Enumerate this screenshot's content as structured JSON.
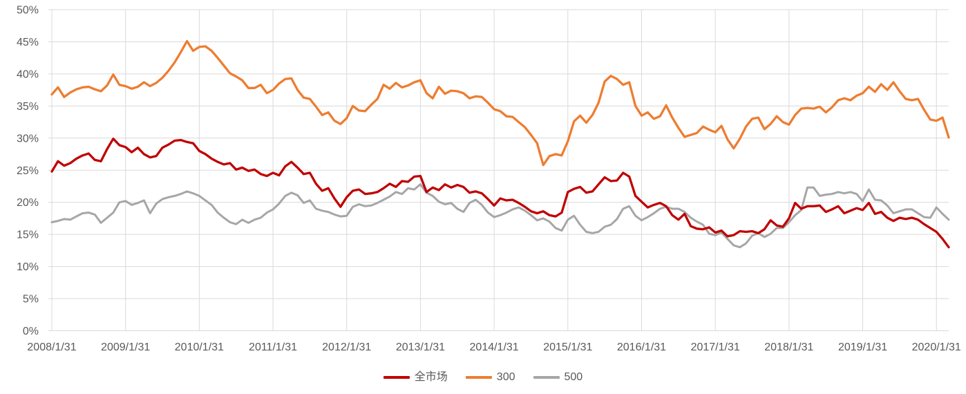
{
  "chart_data": {
    "type": "line",
    "title": "",
    "x_start": "2008/1",
    "x_end": "2020/3",
    "x_interval": "monthly",
    "x_tick_labels": [
      "2008/1/31",
      "2009/1/31",
      "2010/1/31",
      "2011/1/31",
      "2012/1/31",
      "2013/1/31",
      "2014/1/31",
      "2015/1/31",
      "2016/1/31",
      "2017/1/31",
      "2018/1/31",
      "2019/1/31",
      "2020/1/31"
    ],
    "y_tick_labels": [
      "0%",
      "5%",
      "10%",
      "15%",
      "20%",
      "25%",
      "30%",
      "35%",
      "40%",
      "45%",
      "50%"
    ],
    "ylim": [
      0,
      50
    ],
    "y_tick_step": 5,
    "y_unit": "%",
    "grid": "both",
    "legend_position": "bottom",
    "series": [
      {
        "name": "全市场",
        "color": "#C00000",
        "values": [
          24.8,
          26.4,
          25.7,
          26.1,
          26.8,
          27.3,
          27.6,
          26.6,
          26.4,
          28.3,
          29.9,
          28.9,
          28.6,
          27.8,
          28.5,
          27.5,
          27.0,
          27.2,
          28.5,
          29.0,
          29.6,
          29.7,
          29.4,
          29.2,
          28.0,
          27.5,
          26.8,
          26.3,
          25.9,
          26.1,
          25.1,
          25.4,
          24.9,
          25.1,
          24.4,
          24.1,
          24.6,
          24.2,
          25.6,
          26.3,
          25.4,
          24.4,
          24.6,
          22.9,
          21.8,
          22.2,
          20.6,
          19.3,
          20.8,
          21.8,
          22.0,
          21.3,
          21.4,
          21.6,
          22.2,
          22.9,
          22.4,
          23.3,
          23.2,
          24.0,
          24.1,
          21.6,
          22.3,
          21.9,
          22.8,
          22.3,
          22.7,
          22.4,
          21.5,
          21.7,
          21.4,
          20.5,
          19.5,
          20.6,
          20.3,
          20.4,
          19.9,
          19.3,
          18.6,
          18.3,
          18.6,
          18.0,
          17.8,
          18.4,
          21.6,
          22.1,
          22.4,
          21.5,
          21.7,
          22.8,
          23.9,
          23.3,
          23.4,
          24.6,
          24.0,
          21.0,
          20.1,
          19.2,
          19.6,
          19.9,
          19.4,
          18.0,
          17.3,
          18.2,
          16.3,
          15.9,
          15.8,
          16.1,
          15.3,
          15.6,
          14.7,
          14.9,
          15.5,
          15.4,
          15.5,
          15.2,
          15.8,
          17.2,
          16.4,
          16.2,
          17.5,
          19.9,
          19.0,
          19.4,
          19.4,
          19.5,
          18.5,
          18.9,
          19.4,
          18.3,
          18.7,
          19.1,
          18.8,
          19.9,
          18.2,
          18.5,
          17.6,
          17.1,
          17.6,
          17.4,
          17.6,
          17.3,
          16.6,
          16.0,
          15.4,
          14.3,
          13.0
        ]
      },
      {
        "name": "300",
        "color": "#ED7D31",
        "values": [
          36.8,
          37.9,
          36.4,
          37.1,
          37.6,
          37.9,
          38.0,
          37.6,
          37.3,
          38.2,
          39.9,
          38.3,
          38.1,
          37.7,
          38.0,
          38.7,
          38.1,
          38.6,
          39.4,
          40.5,
          41.8,
          43.4,
          45.1,
          43.6,
          44.2,
          44.3,
          43.6,
          42.5,
          41.3,
          40.1,
          39.6,
          39.0,
          37.8,
          37.8,
          38.3,
          37.0,
          37.5,
          38.5,
          39.2,
          39.3,
          37.5,
          36.3,
          36.1,
          34.9,
          33.6,
          34.0,
          32.7,
          32.2,
          33.1,
          35.0,
          34.3,
          34.2,
          35.2,
          36.1,
          38.3,
          37.7,
          38.6,
          37.9,
          38.2,
          38.7,
          39.0,
          37.0,
          36.2,
          38.0,
          36.9,
          37.4,
          37.3,
          37.0,
          36.2,
          36.5,
          36.4,
          35.5,
          34.5,
          34.2,
          33.4,
          33.3,
          32.5,
          31.7,
          30.5,
          29.2,
          25.8,
          27.2,
          27.5,
          27.3,
          29.5,
          32.6,
          33.5,
          32.4,
          33.6,
          35.5,
          38.8,
          39.7,
          39.2,
          38.3,
          38.7,
          35.0,
          33.5,
          34.0,
          33.0,
          33.4,
          35.1,
          33.2,
          31.6,
          30.2,
          30.5,
          30.8,
          31.8,
          31.3,
          30.9,
          31.9,
          29.8,
          28.4,
          29.9,
          31.8,
          33.0,
          33.2,
          31.4,
          32.2,
          33.4,
          32.5,
          32.1,
          33.6,
          34.6,
          34.7,
          34.6,
          34.9,
          34.0,
          34.8,
          35.9,
          36.2,
          35.9,
          36.6,
          37.0,
          38.0,
          37.2,
          38.4,
          37.5,
          38.7,
          37.3,
          36.1,
          35.9,
          36.1,
          34.4,
          32.9,
          32.7,
          33.2,
          30.1
        ]
      },
      {
        "name": "500",
        "color": "#A6A6A6",
        "values": [
          16.9,
          17.1,
          17.4,
          17.3,
          17.8,
          18.3,
          18.4,
          18.1,
          16.8,
          17.6,
          18.4,
          20.0,
          20.2,
          19.6,
          19.9,
          20.3,
          18.3,
          19.8,
          20.5,
          20.8,
          21.0,
          21.3,
          21.7,
          21.4,
          21.0,
          20.3,
          19.6,
          18.4,
          17.6,
          16.9,
          16.6,
          17.3,
          16.8,
          17.3,
          17.6,
          18.4,
          18.9,
          19.8,
          21.0,
          21.5,
          21.1,
          19.9,
          20.3,
          19.0,
          18.7,
          18.5,
          18.1,
          17.8,
          17.9,
          19.3,
          19.7,
          19.4,
          19.5,
          19.9,
          20.4,
          20.9,
          21.6,
          21.3,
          22.2,
          22.0,
          22.8,
          21.5,
          21.0,
          20.1,
          19.7,
          19.9,
          19.0,
          18.5,
          19.9,
          20.4,
          19.6,
          18.4,
          17.7,
          18.0,
          18.4,
          18.9,
          19.2,
          18.7,
          18.0,
          17.2,
          17.5,
          17.0,
          16.0,
          15.6,
          17.3,
          17.9,
          16.5,
          15.4,
          15.2,
          15.4,
          16.2,
          16.5,
          17.4,
          19.0,
          19.4,
          17.9,
          17.2,
          17.7,
          18.3,
          19.0,
          19.3,
          19.0,
          19.0,
          18.5,
          17.6,
          17.0,
          16.5,
          15.1,
          14.9,
          15.3,
          14.3,
          13.3,
          13.0,
          13.6,
          14.8,
          15.2,
          14.6,
          15.1,
          16.0,
          16.0,
          16.9,
          18.0,
          18.8,
          22.3,
          22.3,
          21.0,
          21.2,
          21.3,
          21.6,
          21.4,
          21.6,
          21.3,
          20.2,
          22.0,
          20.4,
          20.3,
          19.5,
          18.3,
          18.6,
          18.9,
          18.9,
          18.3,
          17.7,
          17.6,
          19.2,
          18.2,
          17.3
        ]
      }
    ]
  },
  "style": {
    "background": "#FFFFFF",
    "grid_color": "#D9D9D9",
    "tick_text_color": "#595959",
    "line_widths": [
      3.3,
      3.3,
      3.0
    ]
  }
}
